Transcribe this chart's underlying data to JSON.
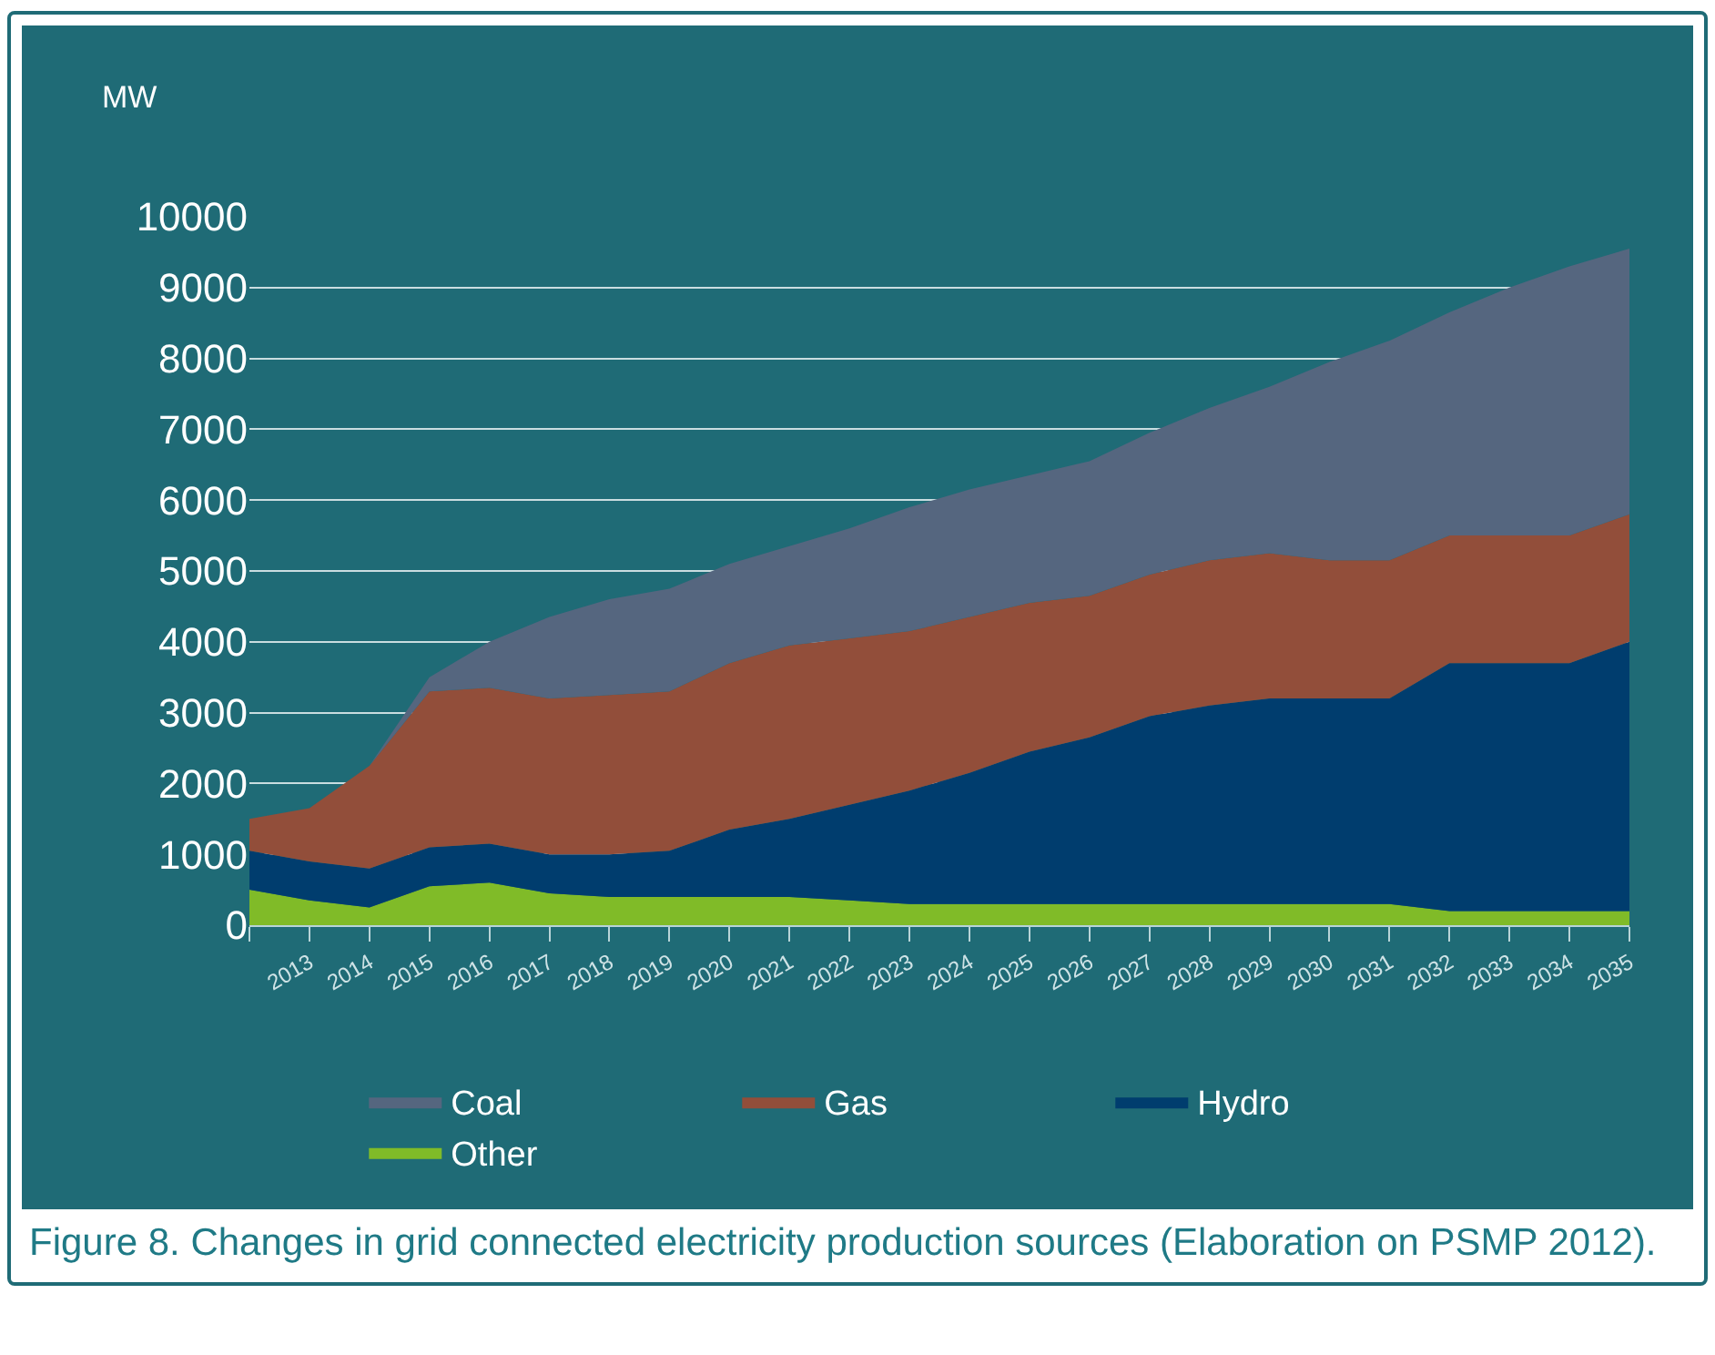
{
  "chart_data": {
    "type": "area",
    "stacked": true,
    "ylabel": "MW",
    "categories": [
      null,
      "2013",
      "2014",
      "2015",
      "2016",
      "2017",
      "2018",
      "2019",
      "2020",
      "2021",
      "2022",
      "2023",
      "2024",
      "2025",
      "2026",
      "2027",
      "2028",
      "2029",
      "2030",
      "2031",
      "2032",
      "2033",
      "2034",
      "2035"
    ],
    "series": [
      {
        "name": "Other",
        "color": "#80bb28",
        "values": [
          500,
          350,
          250,
          550,
          600,
          450,
          400,
          400,
          400,
          400,
          350,
          300,
          300,
          300,
          300,
          300,
          300,
          300,
          300,
          300,
          200,
          200,
          200,
          200
        ]
      },
      {
        "name": "Hydro",
        "color": "#003d6e",
        "values": [
          550,
          550,
          550,
          550,
          550,
          550,
          600,
          650,
          950,
          1100,
          1350,
          1600,
          1850,
          2150,
          2350,
          2650,
          2800,
          2900,
          2900,
          2900,
          3500,
          3500,
          3500,
          3800
        ]
      },
      {
        "name": "Gas",
        "color": "#924e3a",
        "values": [
          450,
          750,
          1450,
          2200,
          2200,
          2200,
          2250,
          2250,
          2350,
          2450,
          2350,
          2250,
          2200,
          2100,
          2000,
          2000,
          2050,
          2050,
          1950,
          1950,
          1800,
          1800,
          1800,
          1800
        ]
      },
      {
        "name": "Coal",
        "color": "#55667f",
        "values": [
          0,
          0,
          0,
          200,
          650,
          1150,
          1350,
          1450,
          1400,
          1400,
          1550,
          1750,
          1800,
          1800,
          1900,
          2000,
          2150,
          2350,
          2800,
          3100,
          3150,
          3500,
          3800,
          3750
        ]
      }
    ],
    "ylim": [
      0,
      10000
    ],
    "yticks": [
      0,
      1000,
      2000,
      3000,
      4000,
      5000,
      6000,
      7000,
      8000,
      9000,
      10000
    ],
    "grid": "y",
    "legend": "bottom",
    "annotations": [
      "Figure 8. Changes in grid connected electricity production sources (Elaboration on PSMP 2012)."
    ]
  }
}
